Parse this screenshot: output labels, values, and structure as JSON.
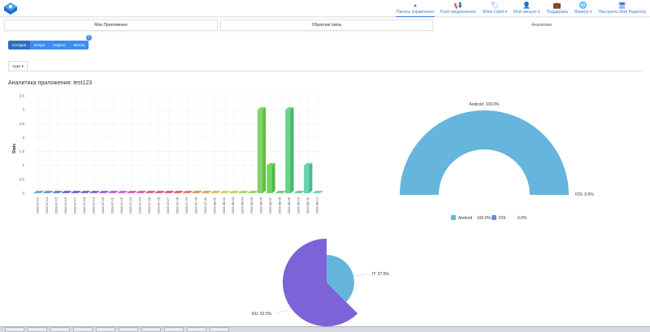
{
  "nav": [
    {
      "label": "Панель управления",
      "icon": "dashboard-icon",
      "glyph": "◕",
      "active": true
    },
    {
      "label": "Push-уведомления",
      "icon": "megaphone-icon",
      "glyph": "📢"
    },
    {
      "label": "White Label ▾",
      "icon": "tags-icon",
      "glyph": "🏷"
    },
    {
      "label": "Мой аккаунт ▾",
      "icon": "user-icon",
      "glyph": "👤"
    },
    {
      "label": "Поддержка",
      "icon": "briefcase-icon",
      "glyph": "💼"
    },
    {
      "label": "Язык(и) ▾",
      "icon": "language-icon",
      "glyph": "🌐"
    },
    {
      "label": "Настроить Мой Редактор",
      "icon": "monitor-icon",
      "glyph": "🖥"
    }
  ],
  "tabs": [
    "Мои Приложения",
    "Обратная связь",
    "Аналитика"
  ],
  "periods": [
    "Сегодня",
    "Вчера",
    "Неделя",
    "Месяц"
  ],
  "apps_dropdown": "Apps ▾",
  "title": "Аналитика приложения: test123",
  "chart_data": [
    {
      "type": "bar",
      "title": "",
      "ylabel": "Stats",
      "xlabel": "",
      "ylim": [
        0,
        3.5
      ],
      "yticks": [
        "0",
        "0.5",
        "1",
        "1.5",
        "2",
        "2.5",
        "3",
        "3.5"
      ],
      "categories": [
        "2019-07-13",
        "2019-07-14",
        "2019-07-15",
        "2019-07-16",
        "2019-07-17",
        "2019-07-18",
        "2019-07-19",
        "2019-07-20",
        "2019-07-21",
        "2019-07-22",
        "2019-07-23",
        "2019-07-24",
        "2019-07-25",
        "2019-07-26",
        "2019-07-27",
        "2019-07-28",
        "2019-07-29",
        "2019-07-30",
        "2019-07-31",
        "2019-08-01",
        "2019-08-02",
        "2019-08-03",
        "2019-08-04",
        "2019-08-05",
        "2019-08-06",
        "2019-08-07",
        "2019-08-08",
        "2019-08-09",
        "2019-08-10",
        "2019-08-11",
        "2019-08-12"
      ],
      "values": [
        0,
        0,
        0,
        0,
        0,
        0,
        0,
        0,
        0,
        0,
        0,
        0,
        0,
        0,
        0,
        0,
        0,
        0,
        0,
        0,
        0,
        0,
        0,
        0,
        3,
        1,
        0,
        3,
        0,
        1,
        0
      ]
    },
    {
      "type": "pie",
      "variant": "semi-donut",
      "labels": [
        "Android: 100.0%",
        "IOS: 0.0%"
      ],
      "slices": [
        {
          "name": "Android",
          "value": 100.0,
          "color": "#65b5dc"
        },
        {
          "name": "IOS",
          "value": 0.0,
          "color": "#6a8fdd"
        }
      ],
      "legend": [
        {
          "name": "Android",
          "pct": "100.0%"
        },
        {
          "name": "IOS",
          "pct": "0.0%"
        }
      ],
      "legend_placement": "bottom"
    },
    {
      "type": "pie",
      "variant": "variable-radius",
      "labels": [
        "IT: 37.5%",
        "RU: 62.5%"
      ],
      "slices": [
        {
          "name": "IT",
          "value": 37.5,
          "color": "#65b5dc"
        },
        {
          "name": "RU",
          "value": 62.5,
          "color": "#7c63d8"
        }
      ]
    }
  ]
}
